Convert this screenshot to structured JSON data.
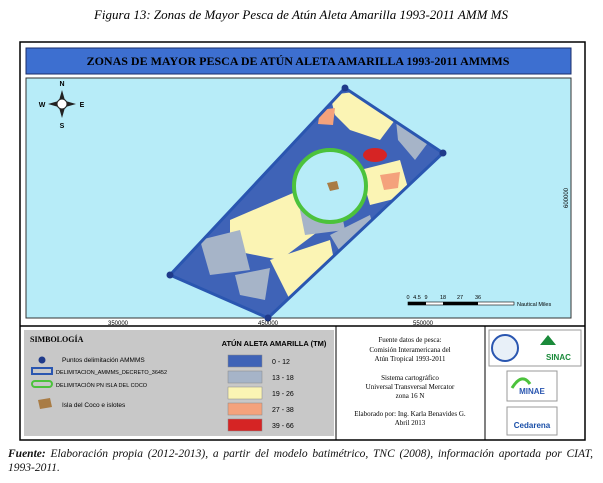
{
  "caption": "Figura 13: Zonas de Mayor Pesca de Atún Aleta Amarilla 1993-2011 AMM MS",
  "map": {
    "title": "ZONAS DE MAYOR PESCA DE ATÚN ALETA AMARILLA 1993-2011 AMMMS",
    "compass": {
      "n": "N",
      "s": "S",
      "e": "E",
      "w": "W"
    },
    "x_labels": [
      "350000",
      "450000",
      "550000"
    ],
    "y_label": "600000",
    "scale_bar": {
      "ticks": [
        "0",
        "4.5",
        "9",
        "18",
        "27",
        "36"
      ],
      "unit": "Nautical Miles"
    }
  },
  "legend": {
    "title": "SIMBOLOGÍA",
    "items": [
      "Puntos delimitación AMMMS",
      "DELIMITACION_AMMMS_DECRETO_36452",
      "DELIMITACIÓN PN ISLA DEL COCO",
      "Isla del Coco e islotes"
    ],
    "catch": {
      "title": "ATÚN ALETA AMARILLA (TM)",
      "classes": [
        {
          "label": "0 - 12",
          "color": "#3f63b7"
        },
        {
          "label": "13 - 18",
          "color": "#a6b4c8"
        },
        {
          "label": "19 - 26",
          "color": "#fbf4b4"
        },
        {
          "label": "27 - 38",
          "color": "#f4a27c"
        },
        {
          "label": "39 - 66",
          "color": "#d62424"
        }
      ]
    }
  },
  "info": [
    "Fuente datos de pesca:",
    "Comisión Interamericana del",
    "Atún Tropical 1993-2011",
    "Sistema cartográfico",
    "Universal Transversal Mercator",
    "zona 16 N",
    "Elaborado por: Ing. Karla Benavides G.",
    "Abril 2013"
  ],
  "logos": [
    "SINAC",
    "MINAE",
    "Cedarena"
  ],
  "footnote": {
    "label": "Fuente:",
    "text": " Elaboración propia (2012-2013), a partir del modelo batimétrico, TNC (2008), información aportada por CIAT, 1993-2011."
  }
}
